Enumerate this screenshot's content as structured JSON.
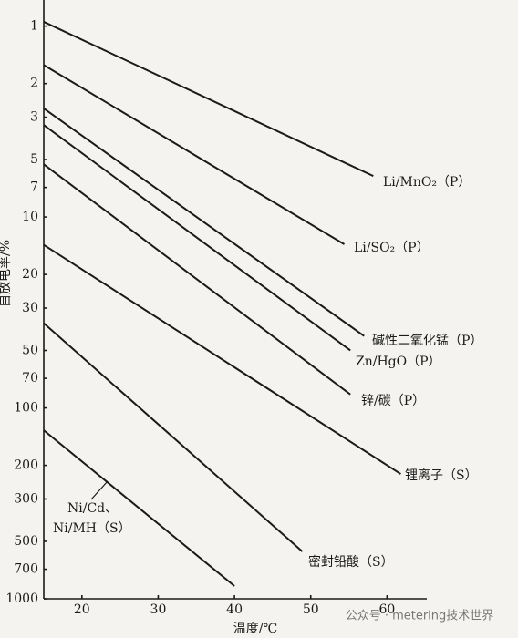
{
  "chart_data": {
    "type": "line",
    "x_label": "温度/℃",
    "y_label": "自放电率/%",
    "xlim": [
      15,
      70
    ],
    "xticks": [
      20,
      30,
      40,
      50,
      60
    ],
    "ylim": [
      0.73,
      1000
    ],
    "y_log": true,
    "y_inverted": true,
    "yticks": [
      1,
      2,
      3,
      5,
      7,
      10,
      20,
      30,
      50,
      70,
      100,
      200,
      300,
      500,
      700,
      1000
    ],
    "series": [
      {
        "name": "Li/MnO₂（P）",
        "color": "#1a1a1a",
        "x": [
          15,
          58.2
        ],
        "values": [
          0.95,
          6.1
        ]
      },
      {
        "name": "Li/SO₂（P）",
        "color": "#1a1a1a",
        "x": [
          15,
          54.4
        ],
        "values": [
          1.6,
          13.9
        ]
      },
      {
        "name": "碱性二氧化锰（P）",
        "color": "#1a1a1a",
        "x": [
          15,
          57
        ],
        "values": [
          2.7,
          42
        ]
      },
      {
        "name": "Zn/HgO（P）",
        "color": "#1a1a1a",
        "x": [
          15,
          55.2
        ],
        "values": [
          3.3,
          50
        ]
      },
      {
        "name": "锌/碳（P）",
        "color": "#1a1a1a",
        "x": [
          15,
          55.2
        ],
        "values": [
          5.3,
          85
        ]
      },
      {
        "name": "锂离子（S）",
        "color": "#1a1a1a",
        "x": [
          15,
          61.8
        ],
        "values": [
          14,
          222
        ]
      },
      {
        "name": "密封铅酸（S）",
        "color": "#1a1a1a",
        "x": [
          15,
          48.9
        ],
        "values": [
          36,
          565
        ]
      },
      {
        "name": "Ni/Cd、Ni/MH（S）",
        "color": "#1a1a1a",
        "x": [
          15,
          40
        ],
        "values": [
          131,
          857
        ]
      }
    ]
  },
  "watermark": "公众号 · metering技术世界"
}
